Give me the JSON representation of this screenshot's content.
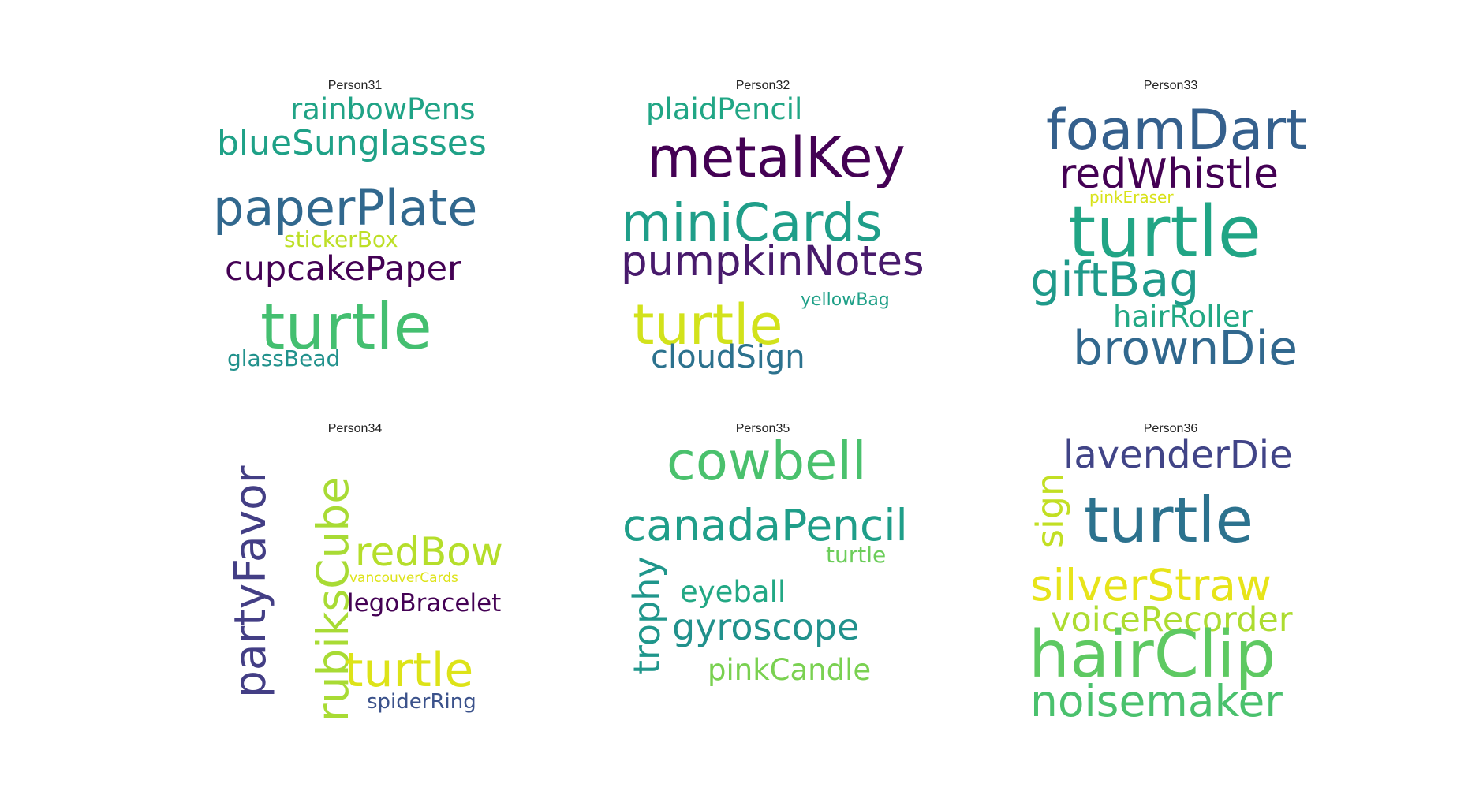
{
  "panels": [
    {
      "title": "Person31",
      "words": [
        {
          "text": "rainbowPens",
          "color": "#20a386"
        },
        {
          "text": "blueSunglasses",
          "color": "#1fa187"
        },
        {
          "text": "paperPlate",
          "color": "#31688e"
        },
        {
          "text": "stickerBox",
          "color": "#bddf26"
        },
        {
          "text": "cupcakePaper",
          "color": "#440154"
        },
        {
          "text": "turtle",
          "color": "#44bf70"
        },
        {
          "text": "glassBead",
          "color": "#21918c"
        }
      ]
    },
    {
      "title": "Person32",
      "words": [
        {
          "text": "plaidPencil",
          "color": "#21a685"
        },
        {
          "text": "metalKey",
          "color": "#440154"
        },
        {
          "text": "miniCards",
          "color": "#1f9e89"
        },
        {
          "text": "pumpkinNotes",
          "color": "#481a6c"
        },
        {
          "text": "yellowBag",
          "color": "#1fa088"
        },
        {
          "text": "turtle",
          "color": "#d2e21b"
        },
        {
          "text": "cloudSign",
          "color": "#2c728e"
        }
      ]
    },
    {
      "title": "Person33",
      "words": [
        {
          "text": "foamDart",
          "color": "#35608d"
        },
        {
          "text": "redWhistle",
          "color": "#440154"
        },
        {
          "text": "pinkEraser",
          "color": "#d8e219"
        },
        {
          "text": "turtle",
          "color": "#21a585"
        },
        {
          "text": "giftBag",
          "color": "#1f9a8a"
        },
        {
          "text": "hairRoller",
          "color": "#22a884"
        },
        {
          "text": "brownDie",
          "color": "#31688e"
        }
      ]
    },
    {
      "title": "Person34",
      "words": [
        {
          "text": "partyFavor",
          "color": "#433e85"
        },
        {
          "text": "rubiksCube",
          "color": "#a8db34"
        },
        {
          "text": "redBow",
          "color": "#b5de2b"
        },
        {
          "text": "vancouverCards",
          "color": "#dde318"
        },
        {
          "text": "legoBracelet",
          "color": "#440154"
        },
        {
          "text": "turtle",
          "color": "#dde318"
        },
        {
          "text": "spiderRing",
          "color": "#3b528b"
        }
      ]
    },
    {
      "title": "Person35",
      "words": [
        {
          "text": "cowbell",
          "color": "#4ac16d"
        },
        {
          "text": "canadaPencil",
          "color": "#1f9e89"
        },
        {
          "text": "turtle",
          "color": "#6ccd5a"
        },
        {
          "text": "trophy",
          "color": "#1f968b"
        },
        {
          "text": "eyeball",
          "color": "#22a884"
        },
        {
          "text": "gyroscope",
          "color": "#21918c"
        },
        {
          "text": "pinkCandle",
          "color": "#7ad151"
        }
      ]
    },
    {
      "title": "Person36",
      "words": [
        {
          "text": "lavenderDie",
          "color": "#414487"
        },
        {
          "text": "sign",
          "color": "#c2df23"
        },
        {
          "text": "turtle",
          "color": "#2c728e"
        },
        {
          "text": "silverStraw",
          "color": "#e7e419"
        },
        {
          "text": "voiceRecorder",
          "color": "#addc30"
        },
        {
          "text": "hairClip",
          "color": "#5ec962"
        },
        {
          "text": "noisemaker",
          "color": "#4ac16d"
        }
      ]
    }
  ]
}
